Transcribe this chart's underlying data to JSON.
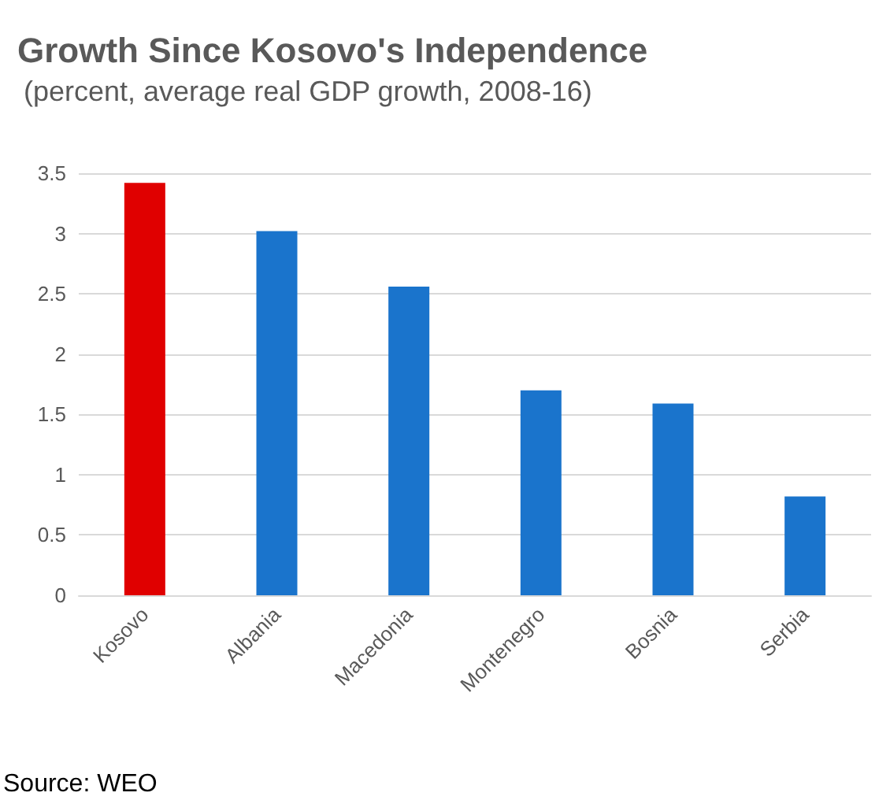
{
  "chart_data": {
    "type": "bar",
    "title": "Growth Since Kosovo's Independence",
    "subtitle": "(percent, average real GDP growth, 2008-16)",
    "categories": [
      "Kosovo",
      "Albania",
      "Macedonia",
      "Montenegro",
      "Bosnia",
      "Serbia"
    ],
    "values": [
      3.42,
      3.02,
      2.56,
      1.7,
      1.59,
      0.82
    ],
    "colors": [
      "#e00000",
      "#1a74cc",
      "#1a74cc",
      "#1a74cc",
      "#1a74cc",
      "#1a74cc"
    ],
    "ylim": [
      0,
      3.5
    ],
    "yticks": [
      0,
      0.5,
      1,
      1.5,
      2,
      2.5,
      3,
      3.5
    ],
    "grid": "y",
    "annotations": [
      "Source: WEO"
    ]
  }
}
